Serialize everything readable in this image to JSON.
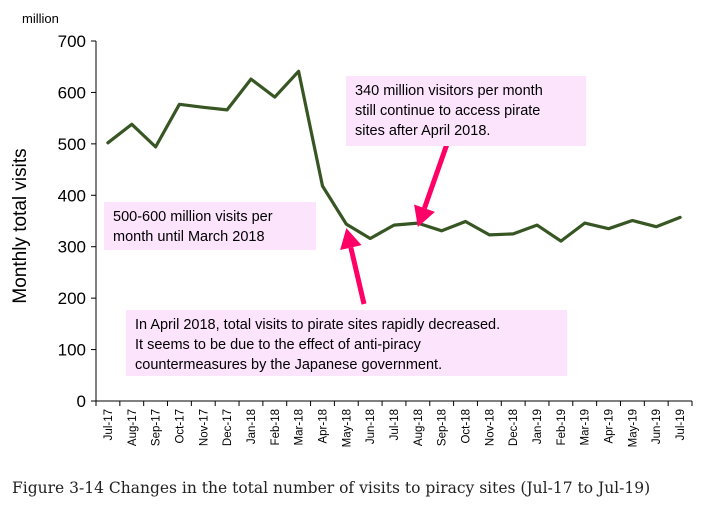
{
  "chart_data": {
    "type": "line",
    "unit_label": "million",
    "ylabel": "Monthly total visits",
    "xlabel": "",
    "ylim": [
      0,
      700
    ],
    "y_ticks": [
      0,
      100,
      200,
      300,
      400,
      500,
      600,
      700
    ],
    "grid": false,
    "line_color": "#375623",
    "categories": [
      "Jul-17",
      "Aug-17",
      "Sep-17",
      "Oct-17",
      "Nov-17",
      "Dec-17",
      "Jan-18",
      "Feb-18",
      "Mar-18",
      "Apr-18",
      "May-18",
      "Jun-18",
      "Jul-18",
      "Aug-18",
      "Sep-18",
      "Oct-18",
      "Nov-18",
      "Dec-18",
      "Jan-19",
      "Feb-19",
      "Mar-19",
      "Apr-19",
      "May-19",
      "Jun-19",
      "Jul-19"
    ],
    "series": [
      {
        "values": [
          502,
          538,
          494,
          577,
          571,
          566,
          626,
          591,
          641,
          418,
          344,
          316,
          342,
          346,
          331,
          349,
          323,
          325,
          342,
          311,
          346,
          335,
          351,
          339,
          357
        ]
      }
    ],
    "annotations": [
      {
        "id": "top-right",
        "text": "340 million visitors per month\nstill continue to access pirate\nsites after April 2018.",
        "arrow_color": "#ff0066"
      },
      {
        "id": "left",
        "text": "500-600 million visits per\nmonth until March 2018"
      },
      {
        "id": "bottom",
        "text": "In April 2018, total visits to pirate sites rapidly decreased.\nIt seems to be due to the effect of anti-piracy\ncountermeasures by the Japanese government.",
        "arrow_color": "#ff0066"
      }
    ]
  },
  "caption": "Figure 3-14 Changes in the total number of visits to piracy sites (Jul-17 to Jul-19)"
}
